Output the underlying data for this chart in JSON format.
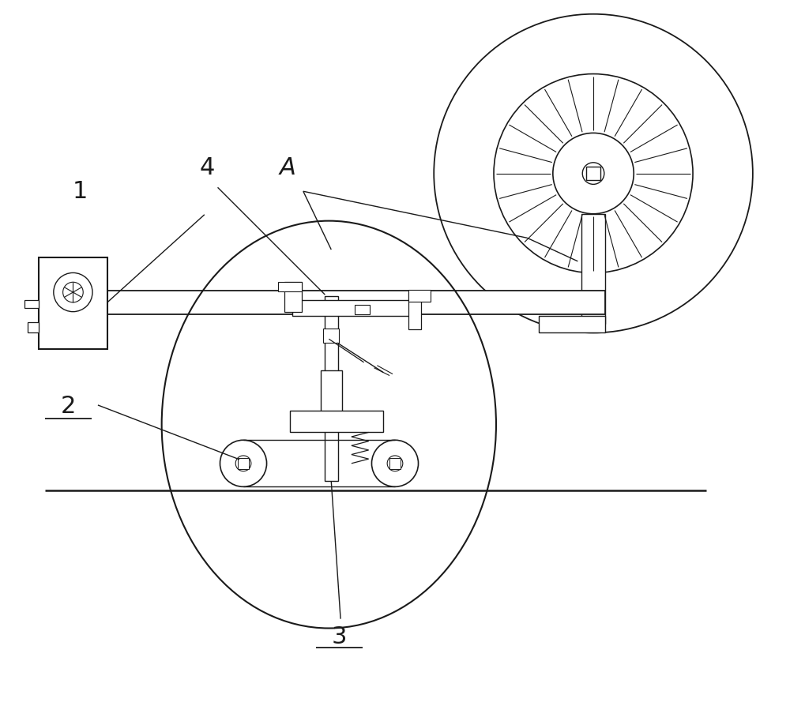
{
  "bg_color": "#ffffff",
  "line_color": "#1a1a1a",
  "fig_width": 10.0,
  "fig_height": 8.94
}
